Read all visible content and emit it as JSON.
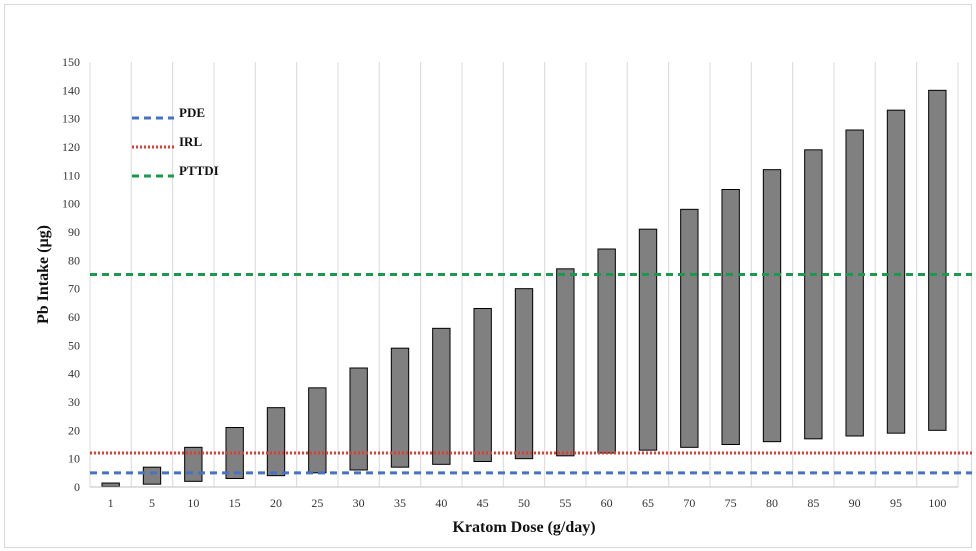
{
  "chart_data": {
    "type": "bar",
    "subtype": "floating-range-bar",
    "title": "",
    "xlabel": "Kratom Dose (g/day)",
    "ylabel": "Pb Intake (µg)",
    "ylim": [
      0,
      150
    ],
    "y_ticks": [
      0,
      10,
      20,
      30,
      40,
      50,
      60,
      70,
      80,
      90,
      100,
      110,
      120,
      130,
      140,
      150
    ],
    "grid": "vertical",
    "legend_position": "top-left",
    "bar_color": "#808080",
    "categories": [
      "1",
      "5",
      "10",
      "15",
      "20",
      "25",
      "30",
      "35",
      "40",
      "45",
      "50",
      "55",
      "60",
      "65",
      "70",
      "75",
      "80",
      "85",
      "90",
      "95",
      "100"
    ],
    "low": [
      0.2,
      1,
      2,
      3,
      4,
      5,
      6,
      7,
      8,
      9,
      10,
      11,
      12,
      13,
      14,
      15,
      16,
      17,
      18,
      19,
      20
    ],
    "high": [
      1.4,
      7,
      14,
      21,
      28,
      35,
      42,
      49,
      56,
      63,
      70,
      77,
      84,
      91,
      98,
      105,
      112,
      119,
      126,
      133,
      140
    ],
    "reference_lines": [
      {
        "name": "PDE",
        "value": 5,
        "color": "#4472c4",
        "style": "dashed"
      },
      {
        "name": "IRL",
        "value": 12,
        "color": "#e03c31",
        "style": "dotted"
      },
      {
        "name": "PTTDI",
        "value": 75,
        "color": "#1a9a4a",
        "style": "dashed"
      }
    ]
  }
}
